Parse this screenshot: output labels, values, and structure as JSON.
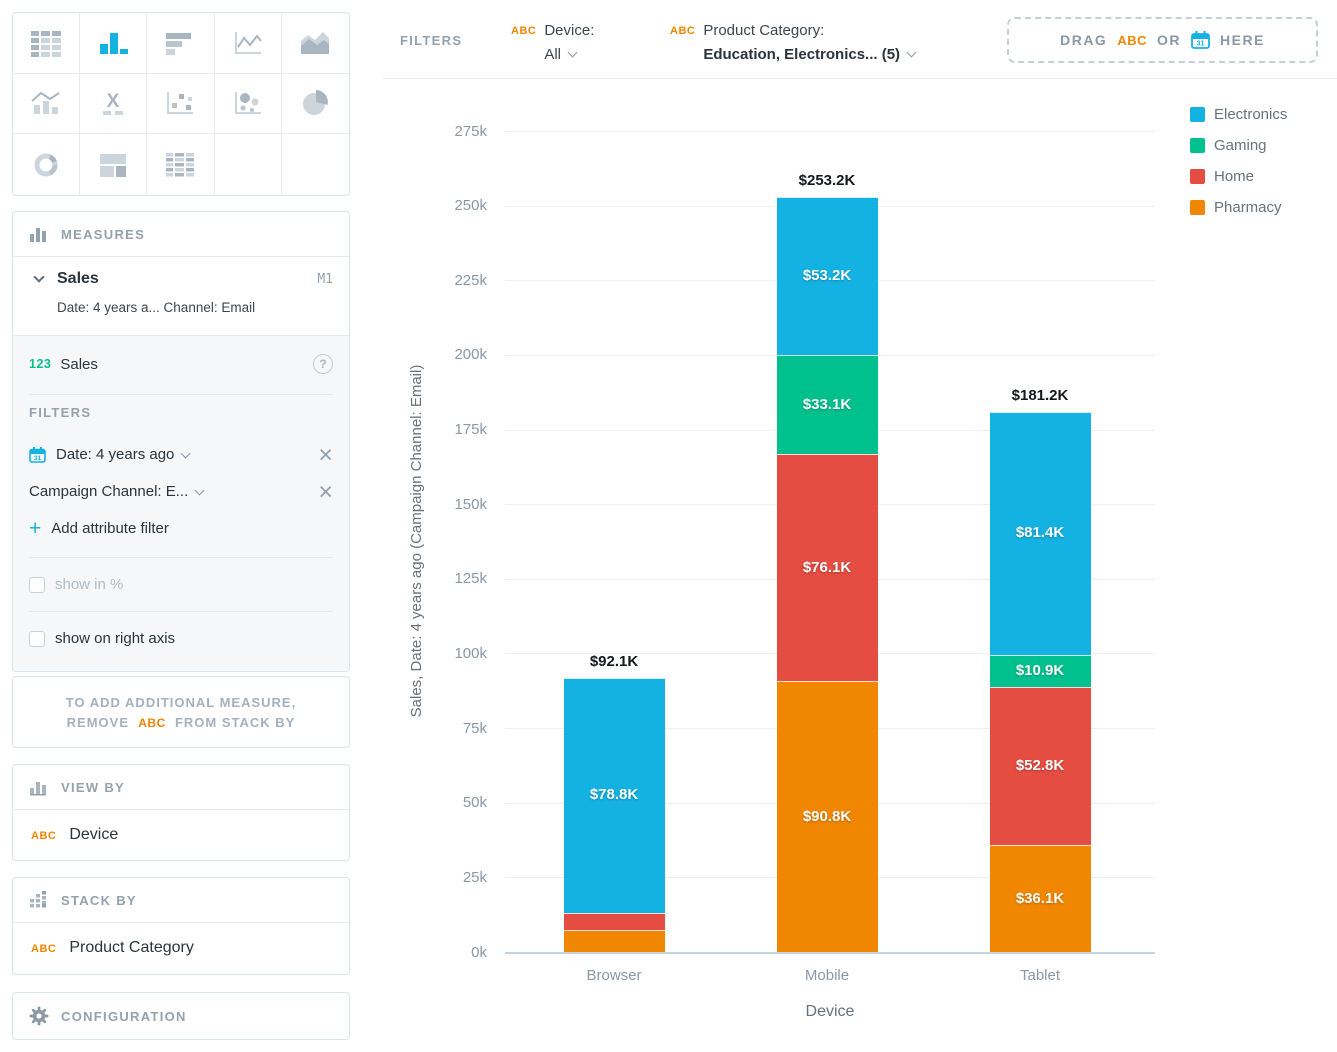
{
  "picker": {
    "active": "column-chart",
    "types": [
      "table",
      "column-chart",
      "bar-chart",
      "line-chart",
      "area-chart",
      "combo-chart",
      "headline",
      "scatter-plot",
      "bubble-chart",
      "pie-chart",
      "donut-chart",
      "treemap",
      "heatmap"
    ]
  },
  "measures_panel": {
    "title": "MEASURES",
    "item": {
      "name": "Sales",
      "badge": "M1",
      "subtitle": "Date: 4 years a... Channel: Email",
      "field_prefix": "123",
      "field_name": "Sales",
      "filters_label": "FILTERS",
      "date_filter": "Date: 4 years ago",
      "attribute_filter": "Campaign Channel: E...",
      "add_filter": "Add attribute filter",
      "show_in_percent": "show in %",
      "show_right_axis": "show on right axis"
    }
  },
  "hint": {
    "line1": "TO ADD ADDITIONAL MEASURE,",
    "line2_prefix": "REMOVE",
    "line2_chip": "ABC",
    "line2_suffix": "FROM STACK BY"
  },
  "view_by": {
    "title": "VIEW BY",
    "chip": "ABC",
    "value": "Device"
  },
  "stack_by": {
    "title": "STACK BY",
    "chip": "ABC",
    "value": "Product Category"
  },
  "configuration": {
    "title": "CONFIGURATION"
  },
  "filter_bar": {
    "label": "FILTERS",
    "device": {
      "chip": "ABC",
      "name": "Device:",
      "value": "All"
    },
    "category": {
      "chip": "ABC",
      "name": "Product Category:",
      "value": "Education, Electronics... (5)"
    },
    "drop_zone": {
      "drag": "DRAG",
      "chip": "ABC",
      "or": "OR",
      "here": "HERE"
    }
  },
  "chart_data": {
    "type": "bar",
    "stacked": true,
    "categories": [
      "Browser",
      "Mobile",
      "Tablet"
    ],
    "series": [
      {
        "name": "Electronics",
        "color": "#14b2e2",
        "values": [
          78.8,
          53.2,
          81.4
        ]
      },
      {
        "name": "Gaming",
        "color": "#00c18d",
        "values": [
          0,
          33.1,
          10.9
        ]
      },
      {
        "name": "Home",
        "color": "#e54d42",
        "values": [
          5.9,
          76.1,
          52.8
        ]
      },
      {
        "name": "Pharmacy",
        "color": "#f18600",
        "values": [
          7.4,
          90.8,
          36.1
        ]
      }
    ],
    "totals": [
      92.1,
      253.2,
      181.2
    ],
    "total_labels": [
      "$92.1K",
      "$253.2K",
      "$181.2K"
    ],
    "xlabel": "Device",
    "ylabel": "Sales, Date: 4 years ago (Campaign Channel: Email)",
    "ylim": [
      0,
      275
    ],
    "ytick_step": 25,
    "ytick_suffix": "k",
    "grid": true,
    "legend_position": "top-right",
    "value_prefix": "$",
    "value_suffix": "K",
    "units": "thousands"
  }
}
